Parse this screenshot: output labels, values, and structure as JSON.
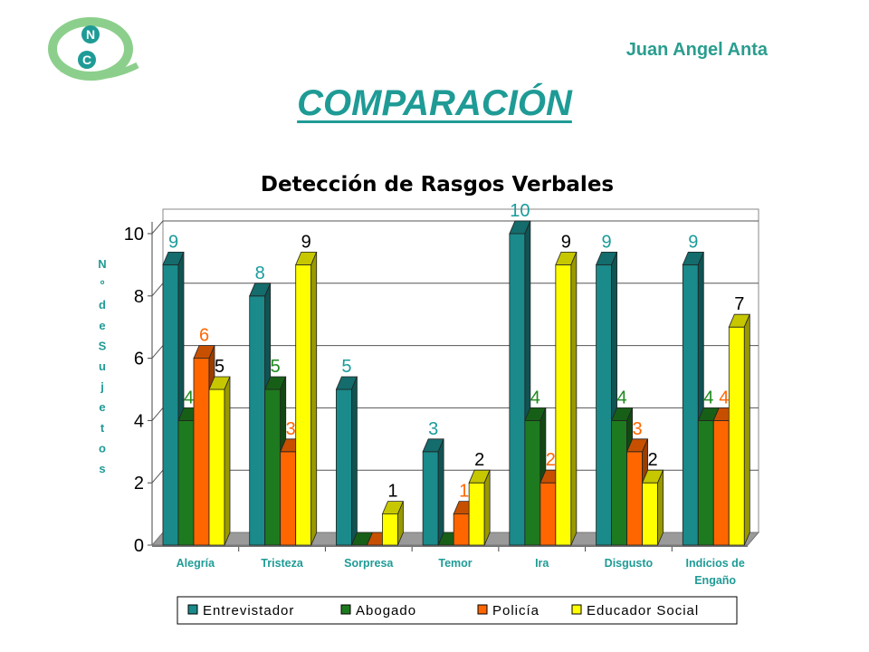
{
  "header": {
    "author": "Juan Angel Anta",
    "heading": "COMPARACIÓN",
    "logo_letters": [
      "N",
      "C"
    ]
  },
  "colors": {
    "accent": "#1f9b96",
    "Entrevistador": "#1a8a8a",
    "Abogado": "#1e7a1e",
    "Policía": "#ff6600",
    "Educador Social": "#ffff00"
  },
  "chart_data": {
    "type": "bar",
    "title": "Detección de Rasgos Verbales",
    "ylabel": "Nº de Sujetos",
    "xlabel": "",
    "ylim": [
      0,
      10
    ],
    "yticks": [
      0,
      2,
      4,
      6,
      8,
      10
    ],
    "grid": true,
    "legend_position": "bottom",
    "categories": [
      "Alegría",
      "Tristeza",
      "Sorpresa",
      "Temor",
      "Ira",
      "Disgusto",
      "Indicios de Engaño"
    ],
    "series": [
      {
        "name": "Entrevistador",
        "values": [
          9,
          8,
          5,
          3,
          10,
          9,
          9
        ],
        "labels": [
          "9",
          "8",
          "5",
          "3",
          "10",
          "9",
          "9"
        ]
      },
      {
        "name": "Abogado",
        "values": [
          4,
          5,
          0,
          0,
          4,
          4,
          4
        ],
        "labels": [
          "4",
          "5",
          "",
          "",
          "4",
          "4",
          "4"
        ]
      },
      {
        "name": "Policía",
        "values": [
          6,
          3,
          0,
          1,
          2,
          3,
          4
        ],
        "labels": [
          "6",
          "3",
          "",
          "1",
          "2",
          "3",
          "4"
        ]
      },
      {
        "name": "Educador Social",
        "values": [
          5,
          9,
          1,
          2,
          9,
          2,
          7
        ],
        "labels": [
          "5",
          "9",
          "1",
          "2",
          "9",
          "2",
          "7"
        ]
      }
    ]
  }
}
